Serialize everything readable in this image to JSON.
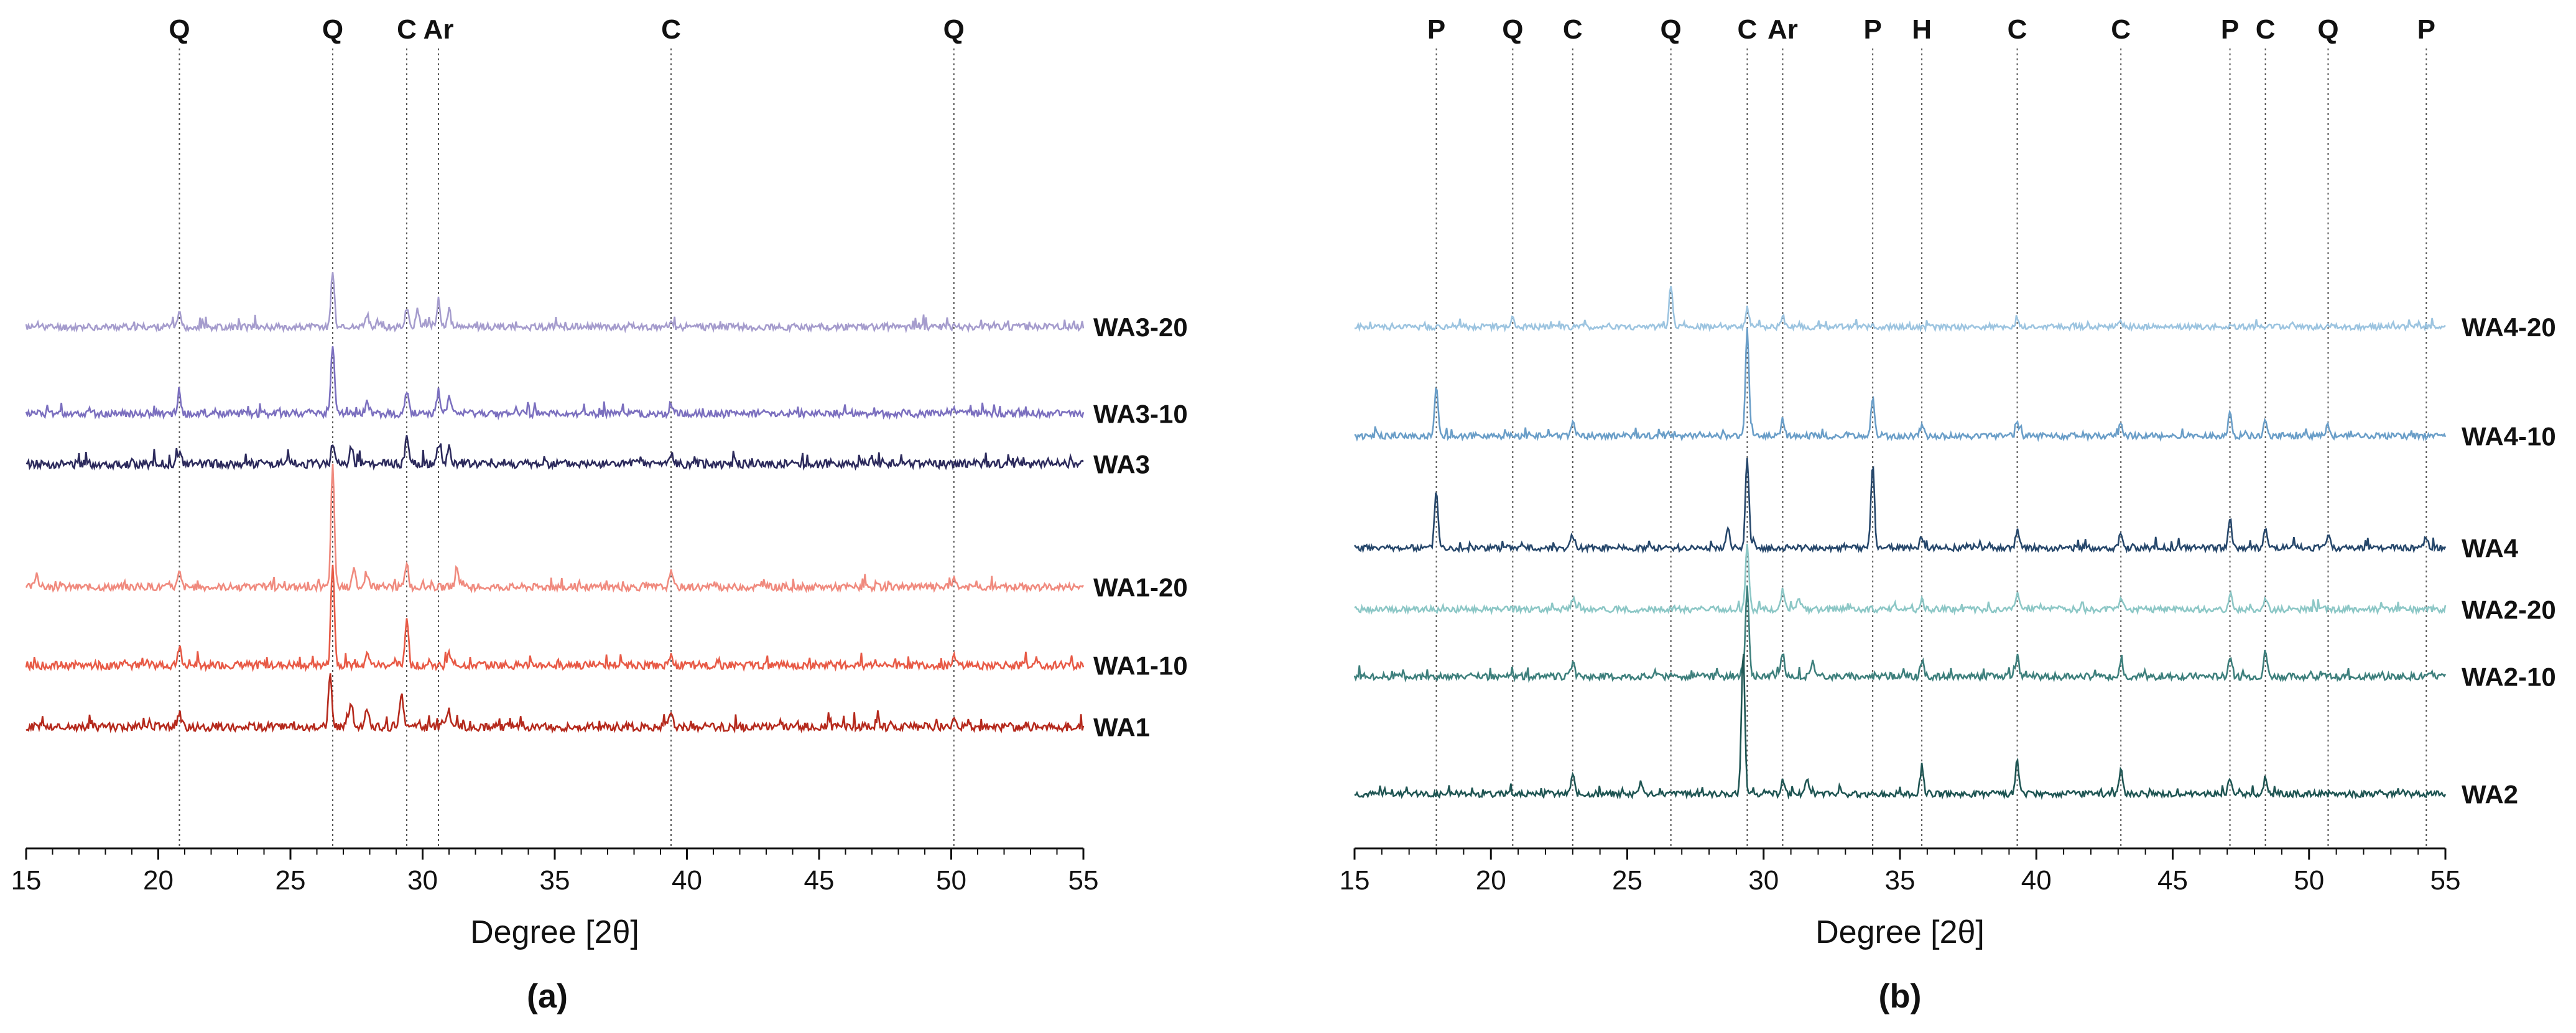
{
  "chart_data": [
    {
      "panel_label": "(a)",
      "type": "line",
      "xlabel": "Degree [2θ]",
      "xlim": [
        15,
        55
      ],
      "xticks": [
        15,
        20,
        25,
        30,
        35,
        40,
        45,
        50,
        55
      ],
      "xtick_labels": [
        "15",
        "20",
        "25",
        "30",
        "35",
        "40",
        "45",
        "50",
        "55"
      ],
      "reference_lines": [
        {
          "label": "Q",
          "x": 20.8
        },
        {
          "label": "Q",
          "x": 26.6
        },
        {
          "label": "C",
          "x": 29.4
        },
        {
          "label": "Ar",
          "x": 30.6
        },
        {
          "label": "C",
          "x": 39.4
        },
        {
          "label": "Q",
          "x": 50.1
        }
      ],
      "series": [
        {
          "name": "WA3-20",
          "color": "#a59ccd",
          "baseline": 8.6,
          "label_offset": 0.0,
          "seed": 11,
          "noise": 0.12,
          "peaks": [
            [
              20.8,
              0.25
            ],
            [
              26.6,
              1.0
            ],
            [
              27.9,
              0.2
            ],
            [
              29.4,
              0.35
            ],
            [
              29.8,
              0.3
            ],
            [
              30.6,
              0.45
            ],
            [
              31.0,
              0.3
            ],
            [
              39.4,
              0.15
            ]
          ]
        },
        {
          "name": "WA3-10",
          "color": "#7b6fbf",
          "baseline": 7.05,
          "label_offset": 0.0,
          "seed": 12,
          "noise": 0.13,
          "peaks": [
            [
              20.8,
              0.3
            ],
            [
              26.6,
              1.25
            ],
            [
              27.9,
              0.25
            ],
            [
              29.4,
              0.4
            ],
            [
              30.6,
              0.4
            ],
            [
              31.0,
              0.3
            ],
            [
              39.4,
              0.2
            ],
            [
              50.1,
              0.12
            ]
          ]
        },
        {
          "name": "WA3",
          "color": "#2c2a5c",
          "baseline": 6.15,
          "label_offset": 0.0,
          "seed": 13,
          "noise": 0.15,
          "peaks": [
            [
              20.8,
              0.2
            ],
            [
              26.6,
              0.4
            ],
            [
              27.3,
              0.3
            ],
            [
              29.4,
              0.5
            ],
            [
              30.6,
              0.35
            ],
            [
              31.0,
              0.3
            ],
            [
              39.4,
              0.2
            ],
            [
              47.0,
              0.12
            ]
          ]
        },
        {
          "name": "WA1-20",
          "color": "#f08a7e",
          "baseline": 3.95,
          "label_offset": 0.0,
          "seed": 14,
          "noise": 0.13,
          "peaks": [
            [
              15.4,
              0.25
            ],
            [
              20.8,
              0.25
            ],
            [
              26.6,
              2.15
            ],
            [
              27.4,
              0.3
            ],
            [
              27.9,
              0.25
            ],
            [
              29.4,
              0.45
            ],
            [
              31.3,
              0.35
            ],
            [
              39.4,
              0.25
            ],
            [
              50.1,
              0.15
            ]
          ]
        },
        {
          "name": "WA1-10",
          "color": "#e85a46",
          "baseline": 2.55,
          "label_offset": 0.0,
          "seed": 15,
          "noise": 0.14,
          "peaks": [
            [
              20.8,
              0.3
            ],
            [
              26.6,
              1.85
            ],
            [
              27.9,
              0.25
            ],
            [
              29.4,
              0.85
            ],
            [
              31.0,
              0.2
            ],
            [
              39.4,
              0.2
            ],
            [
              50.1,
              0.15
            ]
          ]
        },
        {
          "name": "WA1",
          "color": "#b5291c",
          "baseline": 1.45,
          "label_offset": 0.0,
          "seed": 16,
          "noise": 0.15,
          "peaks": [
            [
              20.8,
              0.25
            ],
            [
              26.5,
              0.95
            ],
            [
              27.3,
              0.4
            ],
            [
              27.9,
              0.35
            ],
            [
              29.2,
              0.65
            ],
            [
              31.0,
              0.3
            ],
            [
              39.4,
              0.25
            ],
            [
              47.2,
              0.15
            ],
            [
              50.1,
              0.15
            ]
          ]
        }
      ]
    },
    {
      "panel_label": "(b)",
      "type": "line",
      "xlabel": "Degree [2θ]",
      "xlim": [
        15,
        55
      ],
      "xticks": [
        15,
        20,
        25,
        30,
        35,
        40,
        45,
        50,
        55
      ],
      "xtick_labels": [
        "15",
        "20",
        "25",
        "30",
        "35",
        "40",
        "45",
        "50",
        "55"
      ],
      "reference_lines": [
        {
          "label": "P",
          "x": 18.0
        },
        {
          "label": "Q",
          "x": 20.8
        },
        {
          "label": "C",
          "x": 23.0
        },
        {
          "label": "Q",
          "x": 26.6
        },
        {
          "label": "C",
          "x": 29.4
        },
        {
          "label": "Ar",
          "x": 30.7
        },
        {
          "label": "P",
          "x": 34.0
        },
        {
          "label": "H",
          "x": 35.8
        },
        {
          "label": "C",
          "x": 39.3
        },
        {
          "label": "C",
          "x": 43.1
        },
        {
          "label": "P",
          "x": 47.1
        },
        {
          "label": "C",
          "x": 48.4
        },
        {
          "label": "Q",
          "x": 50.7
        },
        {
          "label": "P",
          "x": 54.3
        }
      ],
      "series": [
        {
          "name": "WA4-20",
          "color": "#9cc4e0",
          "baseline": 8.6,
          "label_offset": 0.0,
          "seed": 21,
          "noise": 0.1,
          "peaks": [
            [
              20.8,
              0.15
            ],
            [
              26.6,
              0.75
            ],
            [
              29.4,
              0.35
            ],
            [
              30.7,
              0.2
            ],
            [
              39.3,
              0.12
            ],
            [
              43.1,
              0.12
            ]
          ]
        },
        {
          "name": "WA4-10",
          "color": "#6a9ec8",
          "baseline": 6.65,
          "label_offset": 0.0,
          "seed": 22,
          "noise": 0.11,
          "peaks": [
            [
              18.0,
              0.85
            ],
            [
              23.0,
              0.25
            ],
            [
              29.4,
              1.9
            ],
            [
              30.7,
              0.3
            ],
            [
              34.0,
              0.65
            ],
            [
              35.8,
              0.2
            ],
            [
              39.3,
              0.25
            ],
            [
              43.1,
              0.25
            ],
            [
              47.1,
              0.4
            ],
            [
              48.4,
              0.3
            ],
            [
              50.7,
              0.2
            ]
          ]
        },
        {
          "name": "WA4",
          "color": "#26476b",
          "baseline": 4.65,
          "label_offset": 0.0,
          "seed": 23,
          "noise": 0.11,
          "peaks": [
            [
              18.0,
              1.0
            ],
            [
              23.0,
              0.25
            ],
            [
              28.7,
              0.35
            ],
            [
              29.4,
              1.6
            ],
            [
              34.0,
              1.5
            ],
            [
              35.8,
              0.2
            ],
            [
              39.3,
              0.3
            ],
            [
              43.1,
              0.3
            ],
            [
              47.1,
              0.55
            ],
            [
              48.4,
              0.3
            ],
            [
              50.7,
              0.25
            ],
            [
              54.3,
              0.2
            ]
          ]
        },
        {
          "name": "WA2-20",
          "color": "#8cc7c6",
          "baseline": 3.55,
          "label_offset": 0.0,
          "seed": 24,
          "noise": 0.11,
          "peaks": [
            [
              23.0,
              0.2
            ],
            [
              29.4,
              1.15
            ],
            [
              30.7,
              0.35
            ],
            [
              31.3,
              0.2
            ],
            [
              35.8,
              0.2
            ],
            [
              39.3,
              0.3
            ],
            [
              43.1,
              0.2
            ],
            [
              47.1,
              0.2
            ],
            [
              48.4,
              0.2
            ]
          ]
        },
        {
          "name": "WA2-10",
          "color": "#3d7f7c",
          "baseline": 2.35,
          "label_offset": 0.0,
          "seed": 25,
          "noise": 0.12,
          "peaks": [
            [
              23.0,
              0.25
            ],
            [
              29.4,
              1.6
            ],
            [
              30.7,
              0.4
            ],
            [
              31.8,
              0.3
            ],
            [
              35.8,
              0.3
            ],
            [
              39.3,
              0.35
            ],
            [
              43.1,
              0.3
            ],
            [
              47.1,
              0.35
            ],
            [
              48.4,
              0.45
            ]
          ]
        },
        {
          "name": "WA2",
          "color": "#1f5553",
          "baseline": 0.25,
          "label_offset": 0.0,
          "seed": 26,
          "noise": 0.11,
          "peaks": [
            [
              23.0,
              0.35
            ],
            [
              25.5,
              0.2
            ],
            [
              29.25,
              2.55
            ],
            [
              30.7,
              0.25
            ],
            [
              31.6,
              0.3
            ],
            [
              35.8,
              0.45
            ],
            [
              39.3,
              0.6
            ],
            [
              43.1,
              0.45
            ],
            [
              47.1,
              0.3
            ],
            [
              48.4,
              0.3
            ]
          ]
        }
      ]
    }
  ]
}
